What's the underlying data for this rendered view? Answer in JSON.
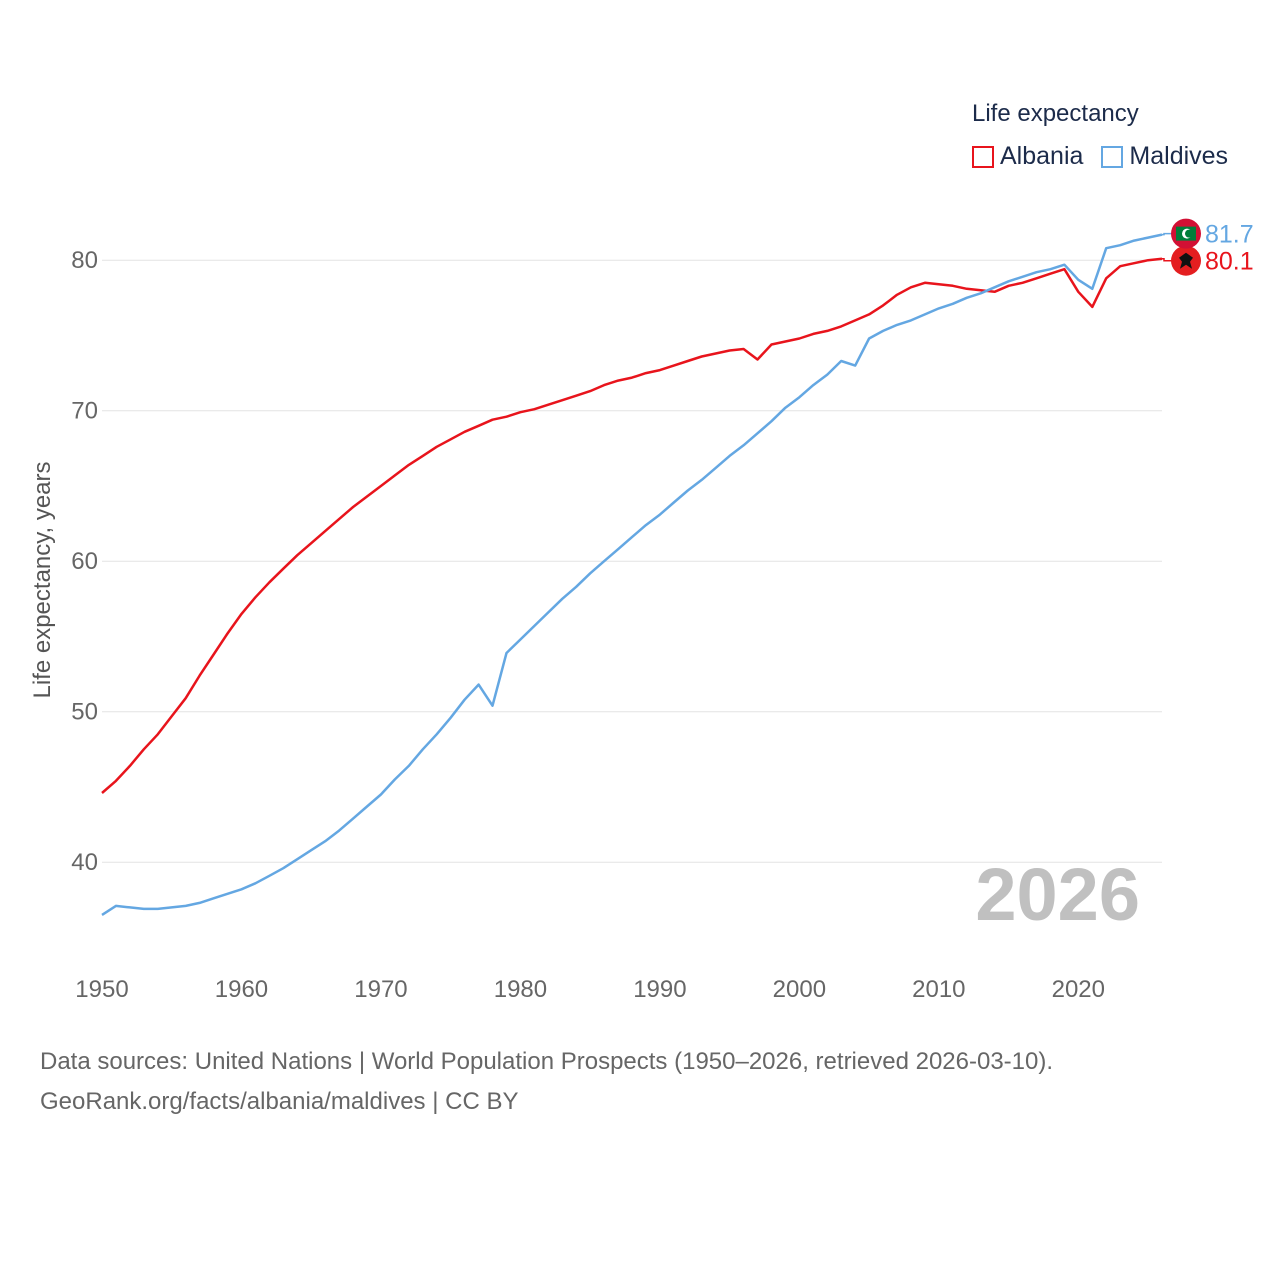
{
  "legend": {
    "title": "Life expectancy",
    "items": [
      {
        "name": "Albania",
        "color": "#e8141c"
      },
      {
        "name": "Maldives",
        "color": "#64a7e2"
      }
    ]
  },
  "year_label": "2026",
  "source": {
    "line1": "Data sources: United Nations | World Population Prospects (1950–2026, retrieved 2026-03-10).",
    "line2": "GeoRank.org/facts/albania/maldives | CC BY"
  },
  "chart_data": {
    "type": "line",
    "ylabel": "Life expectancy, years",
    "xlabel": "",
    "xlim": [
      1950,
      2026
    ],
    "ylim": [
      34.5,
      84
    ],
    "x_ticks": [
      1950,
      1960,
      1970,
      1980,
      1990,
      2000,
      2010,
      2020
    ],
    "y_ticks": [
      40,
      50,
      60,
      70,
      80
    ],
    "x": [
      1950,
      1951,
      1952,
      1953,
      1954,
      1955,
      1956,
      1957,
      1958,
      1959,
      1960,
      1961,
      1962,
      1963,
      1964,
      1965,
      1966,
      1967,
      1968,
      1969,
      1970,
      1971,
      1972,
      1973,
      1974,
      1975,
      1976,
      1977,
      1978,
      1979,
      1980,
      1981,
      1982,
      1983,
      1984,
      1985,
      1986,
      1987,
      1988,
      1989,
      1990,
      1991,
      1992,
      1993,
      1994,
      1995,
      1996,
      1997,
      1998,
      1999,
      2000,
      2001,
      2002,
      2003,
      2004,
      2005,
      2006,
      2007,
      2008,
      2009,
      2010,
      2011,
      2012,
      2013,
      2014,
      2015,
      2016,
      2017,
      2018,
      2019,
      2020,
      2021,
      2022,
      2023,
      2024,
      2025,
      2026
    ],
    "series": [
      {
        "name": "Albania",
        "color": "#e8141c",
        "end_label": "80.1",
        "flag": "albania-flag",
        "values": [
          44.6,
          45.4,
          46.4,
          47.5,
          48.5,
          49.7,
          50.9,
          52.4,
          53.8,
          55.2,
          56.5,
          57.6,
          58.6,
          59.5,
          60.4,
          61.2,
          62.0,
          62.8,
          63.6,
          64.3,
          65.0,
          65.7,
          66.4,
          67.0,
          67.6,
          68.1,
          68.6,
          69.0,
          69.4,
          69.6,
          69.9,
          70.1,
          70.4,
          70.7,
          71.0,
          71.3,
          71.7,
          72.0,
          72.2,
          72.5,
          72.7,
          73.0,
          73.3,
          73.6,
          73.8,
          74.0,
          74.1,
          73.4,
          74.4,
          74.6,
          74.8,
          75.1,
          75.3,
          75.6,
          76.0,
          76.4,
          77.0,
          77.7,
          78.2,
          78.5,
          78.4,
          78.3,
          78.1,
          78.0,
          77.9,
          78.3,
          78.5,
          78.8,
          79.1,
          79.4,
          77.9,
          76.9,
          78.8,
          79.6,
          79.8,
          80.0,
          80.1
        ]
      },
      {
        "name": "Maldives",
        "color": "#64a7e2",
        "end_label": "81.7",
        "flag": "maldives-flag",
        "values": [
          36.5,
          37.1,
          37.0,
          36.9,
          36.9,
          37.0,
          37.1,
          37.3,
          37.6,
          37.9,
          38.2,
          38.6,
          39.1,
          39.6,
          40.2,
          40.8,
          41.4,
          42.1,
          42.9,
          43.7,
          44.5,
          45.5,
          46.4,
          47.5,
          48.5,
          49.6,
          50.8,
          51.8,
          50.4,
          53.9,
          54.8,
          55.7,
          56.6,
          57.5,
          58.3,
          59.2,
          60.0,
          60.8,
          61.6,
          62.4,
          63.1,
          63.9,
          64.7,
          65.4,
          66.2,
          67.0,
          67.7,
          68.5,
          69.3,
          70.2,
          70.9,
          71.7,
          72.4,
          73.3,
          73.0,
          74.8,
          75.3,
          75.7,
          76.0,
          76.4,
          76.8,
          77.1,
          77.5,
          77.8,
          78.2,
          78.6,
          78.9,
          79.2,
          79.4,
          79.7,
          78.7,
          78.1,
          80.8,
          81.0,
          81.3,
          81.5,
          81.7
        ]
      }
    ]
  }
}
